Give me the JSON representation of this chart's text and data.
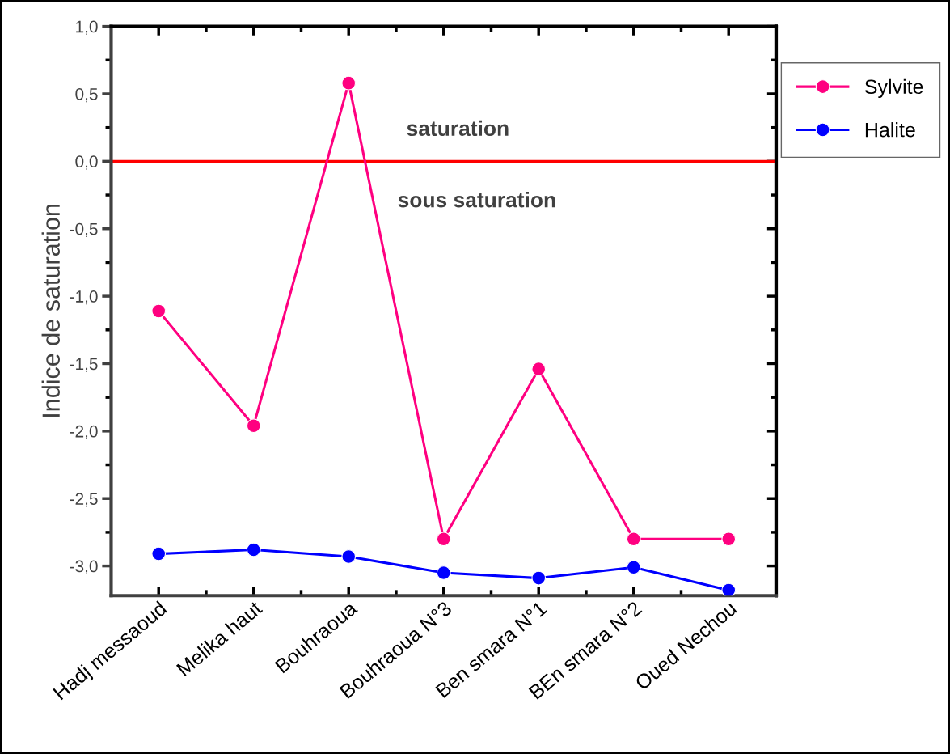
{
  "chart_data": {
    "type": "line",
    "ylabel": "Indice de saturation",
    "categories": [
      "Hadj messaoud",
      "Melika haut",
      "Bouhraoua",
      "Bouhraoua N°3",
      "Ben smara N°1",
      "BEn smara N°2",
      "Oued Nechou"
    ],
    "series": [
      {
        "name": "Sylvite",
        "color": "#ff0080",
        "values": [
          -1.11,
          -1.96,
          0.58,
          -2.8,
          -1.54,
          -2.8,
          -2.8
        ]
      },
      {
        "name": "Halite",
        "color": "#0000ff",
        "values": [
          -2.91,
          -2.88,
          -2.93,
          -3.05,
          -3.09,
          -3.01,
          -3.18
        ]
      }
    ],
    "ylim": [
      -3.22,
      1.0
    ],
    "yticks": [
      {
        "value": 1.0,
        "label": "1,0"
      },
      {
        "value": 0.5,
        "label": "0,5"
      },
      {
        "value": 0.0,
        "label": "0,0"
      },
      {
        "value": -0.5,
        "label": "-0,5"
      },
      {
        "value": -1.0,
        "label": "-1,0"
      },
      {
        "value": -1.5,
        "label": "-1,5"
      },
      {
        "value": -2.0,
        "label": "-2,0"
      },
      {
        "value": -2.5,
        "label": "-2,5"
      },
      {
        "value": -3.0,
        "label": "-3,0"
      }
    ],
    "ref_lines": [
      {
        "axis": "y",
        "value": 0.0,
        "color": "#ff0000"
      }
    ],
    "annotations": [
      "saturation",
      "sous saturation"
    ],
    "legend": "top right",
    "marker": "circle",
    "line_style": "solid",
    "grid": false
  }
}
